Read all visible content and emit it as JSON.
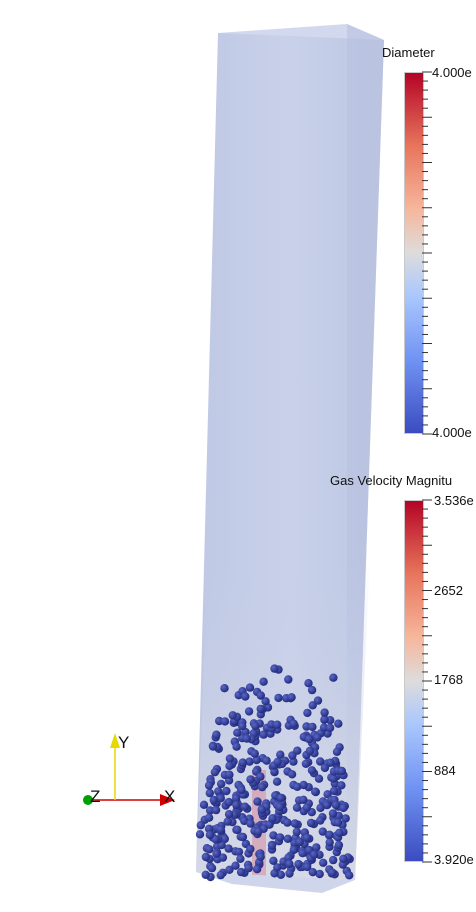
{
  "diameter_legend": {
    "title": "Diameter",
    "max_label": "4.000e",
    "min_label": "4.000e"
  },
  "velocity_legend": {
    "title": "Gas Velocity Magnitu",
    "tick_labels": [
      "3.536e",
      "2652",
      "1768",
      "884",
      "3.920e"
    ]
  },
  "axes_triad": {
    "x_label": "X",
    "y_label": "Y",
    "z_label": "Z"
  },
  "colors": {
    "column": "#c3cce6",
    "particle": "#2f3a8f",
    "triad_x": "#d00000",
    "triad_y": "#e6d800",
    "triad_z": "#00a000"
  }
}
